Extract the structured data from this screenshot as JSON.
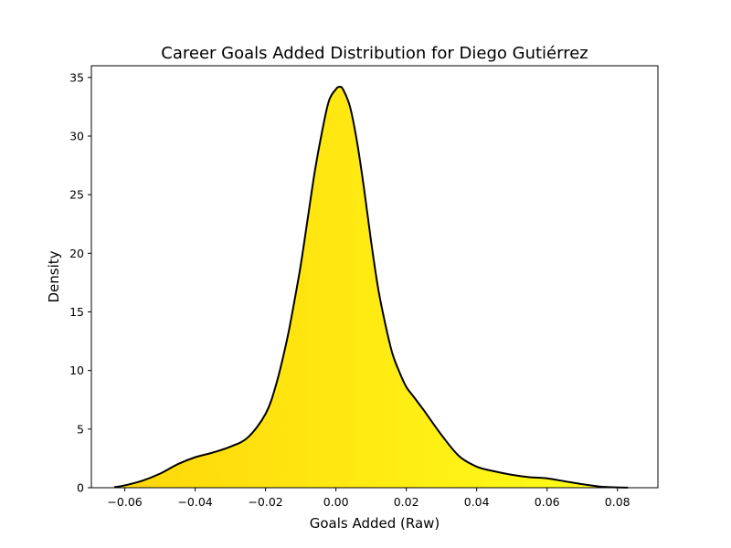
{
  "chart_data": {
    "type": "area",
    "title": "Career Goals Added Distribution for Diego Gutiérrez",
    "xlabel": "Goals Added (Raw)",
    "ylabel": "Density",
    "xlim": [
      -0.0695,
      0.0915
    ],
    "ylim": [
      0,
      36
    ],
    "xticks": [
      -0.06,
      -0.04,
      -0.02,
      0.0,
      0.02,
      0.04,
      0.06,
      0.08
    ],
    "xtick_labels": [
      "−0.06",
      "−0.04",
      "−0.02",
      "0.00",
      "0.02",
      "0.04",
      "0.06",
      "0.08"
    ],
    "yticks": [
      0,
      5,
      10,
      15,
      20,
      25,
      30,
      35
    ],
    "ytick_labels": [
      "0",
      "5",
      "10",
      "15",
      "20",
      "25",
      "30",
      "35"
    ],
    "grid": false,
    "series": [
      {
        "x": [
          -0.063,
          -0.06,
          -0.055,
          -0.05,
          -0.045,
          -0.04,
          -0.035,
          -0.03,
          -0.025,
          -0.02,
          -0.017,
          -0.014,
          -0.012,
          -0.01,
          -0.008,
          -0.006,
          -0.004,
          -0.002,
          0.0,
          0.001,
          0.002,
          0.004,
          0.006,
          0.008,
          0.01,
          0.012,
          0.014,
          0.016,
          0.018,
          0.02,
          0.022,
          0.025,
          0.03,
          0.035,
          0.04,
          0.045,
          0.05,
          0.055,
          0.06,
          0.065,
          0.07,
          0.075,
          0.08,
          0.083
        ],
        "y": [
          0.05,
          0.2,
          0.6,
          1.2,
          2.0,
          2.6,
          3.0,
          3.5,
          4.3,
          6.3,
          8.8,
          12.5,
          15.6,
          19.0,
          23.0,
          27.0,
          30.3,
          33.0,
          34.0,
          34.2,
          34.0,
          32.5,
          29.5,
          25.5,
          21.0,
          17.0,
          14.0,
          11.5,
          9.9,
          8.6,
          7.8,
          6.6,
          4.5,
          2.7,
          1.8,
          1.4,
          1.1,
          0.9,
          0.8,
          0.55,
          0.3,
          0.1,
          0.03,
          0.01
        ],
        "fill_gradient": [
          "#FFD60A",
          "#FFFF1A"
        ],
        "line_color": "#000000"
      }
    ]
  }
}
